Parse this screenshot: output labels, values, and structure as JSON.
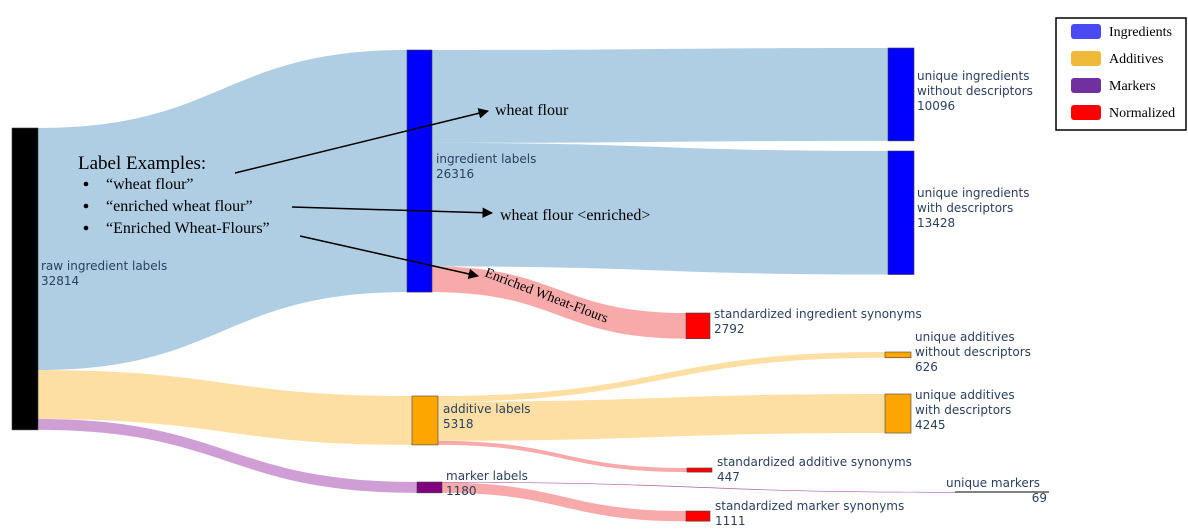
{
  "chart_data": {
    "type": "sankey",
    "nodes": [
      {
        "label": [
          "raw ingredient labels"
        ],
        "value": 32814,
        "color": "#000000"
      },
      {
        "label": [
          "ingredient labels"
        ],
        "value": 26316,
        "color": "#0000ff"
      },
      {
        "label": [
          "additive labels"
        ],
        "value": 5318,
        "color": "#ffa500"
      },
      {
        "label": [
          "marker labels"
        ],
        "value": 1180,
        "color": "#800080"
      },
      {
        "label": [
          "unique ingredients",
          "without descriptors"
        ],
        "value": 10096,
        "color": "#0000ff"
      },
      {
        "label": [
          "unique ingredients",
          "with descriptors"
        ],
        "value": 13428,
        "color": "#0000ff"
      },
      {
        "label": [
          "standardized ingredient synonyms"
        ],
        "value": 2792,
        "color": "#ff0000"
      },
      {
        "label": [
          "unique additives",
          "without descriptors"
        ],
        "value": 626,
        "color": "#ffa500"
      },
      {
        "label": [
          "unique additives",
          "with descriptors"
        ],
        "value": 4245,
        "color": "#ffa500"
      },
      {
        "label": [
          "standardized additive synonyms"
        ],
        "value": 447,
        "color": "#ff0000"
      },
      {
        "label": [
          "unique markers"
        ],
        "value": 69,
        "color": "#000000"
      },
      {
        "label": [
          "standardized marker synonyms"
        ],
        "value": 1111,
        "color": "#ff0000"
      }
    ],
    "links": [
      {
        "source": 0,
        "target": 1,
        "color": "#a6c8e0"
      },
      {
        "source": 0,
        "target": 2,
        "color": "#fddc9a"
      },
      {
        "source": 0,
        "target": 3,
        "color": "#c994d0"
      },
      {
        "source": 1,
        "target": 4,
        "color": "#a6c8e0"
      },
      {
        "source": 1,
        "target": 5,
        "color": "#a6c8e0"
      },
      {
        "source": 1,
        "target": 6,
        "color": "#f7a0a0"
      },
      {
        "source": 2,
        "target": 7,
        "color": "#fddc9a"
      },
      {
        "source": 2,
        "target": 8,
        "color": "#fddc9a"
      },
      {
        "source": 2,
        "target": 9,
        "color": "#f7a0a0"
      },
      {
        "source": 3,
        "target": 10,
        "color": "#a24aa8"
      },
      {
        "source": 3,
        "target": 11,
        "color": "#f7a0a0"
      }
    ],
    "legend": [
      {
        "name": "Ingredients",
        "color": "#4a4af5"
      },
      {
        "name": "Additives",
        "color": "#f0b93a"
      },
      {
        "name": "Markers",
        "color": "#7030a0"
      },
      {
        "name": "Normalized",
        "color": "#ff0000"
      }
    ],
    "annotations": {
      "title": "Label Examples:",
      "items": [
        "“wheat flour”",
        "“enriched wheat flour”",
        "“Enriched Wheat-Flours”"
      ],
      "results": [
        "wheat flour",
        "wheat flour <enriched>",
        "Enriched Wheat-Flours"
      ]
    }
  }
}
